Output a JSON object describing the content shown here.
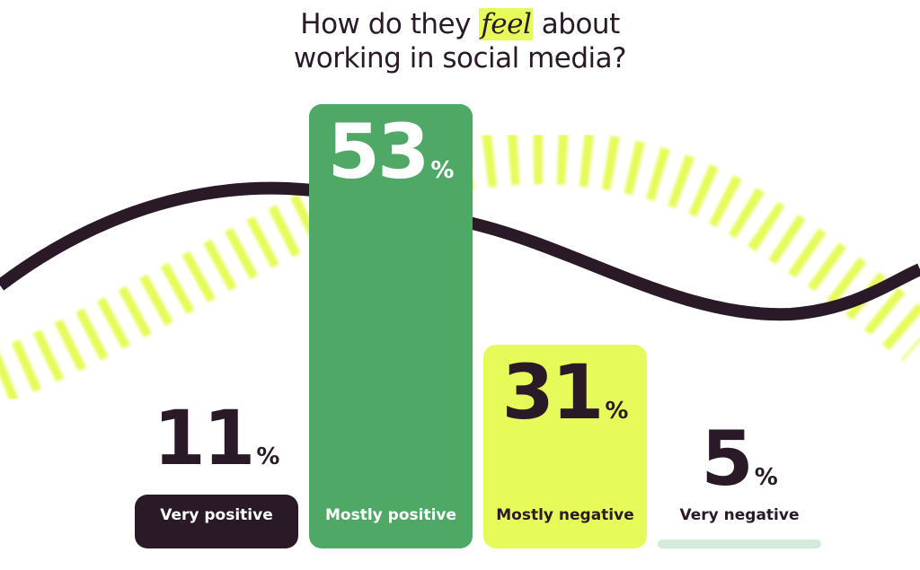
{
  "chart_data": {
    "type": "bar",
    "title_parts": [
      "How do they ",
      "feel",
      " about",
      "working in social media?"
    ],
    "categories": [
      "Very positive",
      "Mostly positive",
      "Mostly negative",
      "Very negative"
    ],
    "values": [
      11,
      53,
      31,
      5
    ],
    "unit": "%",
    "colors": [
      "#2a1a28",
      "#4fa866",
      "#e6fb5a",
      "#d3ebd8"
    ],
    "label_colors": [
      "#ffffff",
      "#ffffff",
      "#2a1a28",
      "#2a1a28"
    ],
    "grid": false,
    "legend": "none"
  }
}
